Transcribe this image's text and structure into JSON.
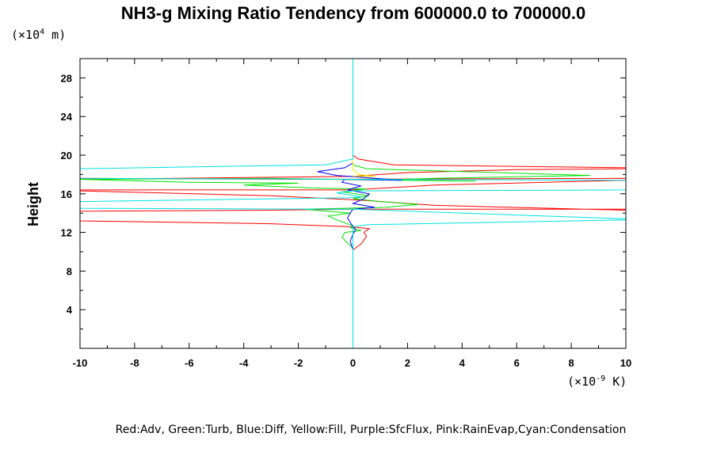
{
  "chart_data": {
    "type": "line",
    "title": "NH3-g Mixing Ratio Tendency from 600000.0 to 700000.0",
    "ylabel": "Height",
    "xlabel": "",
    "y_unit_prefix": "(×10",
    "y_unit_exp": "4",
    "y_unit_suffix": " m)",
    "x_unit_prefix": "(×10",
    "x_unit_exp": "-9",
    "x_unit_suffix": " K)",
    "xlim": [
      -10,
      10
    ],
    "ylim": [
      0,
      30
    ],
    "x_ticks": [
      -10,
      -8,
      -6,
      -4,
      -2,
      0,
      2,
      4,
      6,
      8,
      10
    ],
    "y_ticks": [
      4,
      8,
      12,
      16,
      20,
      24,
      28
    ],
    "legend": "Red:Adv, Green:Turb, Blue:Diff, Yellow:Fill, Purple:SfcFlux, Pink:RainEvap,Cyan:Condensation",
    "series": [
      {
        "name": "Adv",
        "color": "#ff0000",
        "points": [
          [
            0,
            0
          ],
          [
            0,
            9.6
          ],
          [
            0,
            10.2
          ],
          [
            0.3,
            10.8
          ],
          [
            0.5,
            11.6
          ],
          [
            0.4,
            12.0
          ],
          [
            0.6,
            12.4
          ],
          [
            -0.2,
            12.6
          ],
          [
            -3,
            12.9
          ],
          [
            -10,
            13.2
          ],
          [
            -10,
            14.2
          ],
          [
            -3,
            14.3
          ],
          [
            0,
            14.4
          ],
          [
            10,
            14.4
          ],
          [
            10,
            14.3
          ],
          [
            3,
            14.8
          ],
          [
            0.5,
            15.3
          ],
          [
            -3,
            15.8
          ],
          [
            -10,
            16.3
          ],
          [
            -10,
            16.4
          ],
          [
            0,
            16.4
          ],
          [
            3,
            16.9
          ],
          [
            10,
            17.4
          ],
          [
            10,
            17.6
          ],
          [
            -2,
            17.5
          ],
          [
            -10,
            17.6
          ],
          [
            -10,
            17.5
          ],
          [
            0,
            17.8
          ],
          [
            2,
            18.2
          ],
          [
            6,
            18.5
          ],
          [
            10,
            18.6
          ],
          [
            10,
            18.7
          ],
          [
            1.5,
            19.0
          ],
          [
            0.2,
            19.6
          ],
          [
            0,
            20.0
          ],
          [
            0,
            30
          ]
        ]
      },
      {
        "name": "Turb",
        "color": "#00e000",
        "points": [
          [
            0,
            0
          ],
          [
            0,
            10.0
          ],
          [
            0,
            10.4
          ],
          [
            -0.2,
            10.9
          ],
          [
            -0.4,
            11.5
          ],
          [
            -0.3,
            12.0
          ],
          [
            0.3,
            12.2
          ],
          [
            -0.1,
            12.5
          ],
          [
            0,
            12.7
          ],
          [
            -0.6,
            13.3
          ],
          [
            -0.9,
            13.7
          ],
          [
            -0.1,
            14.0
          ],
          [
            -1.8,
            14.4
          ],
          [
            1.2,
            14.6
          ],
          [
            2.4,
            14.9
          ],
          [
            1,
            15.2
          ],
          [
            0,
            15.5
          ],
          [
            0.6,
            15.8
          ],
          [
            -0.4,
            16.2
          ],
          [
            0.5,
            16.5
          ],
          [
            -1.5,
            16.6
          ],
          [
            -4,
            16.9
          ],
          [
            -2,
            17.1
          ],
          [
            -6,
            17.2
          ],
          [
            -10,
            17.5
          ],
          [
            -3,
            17.6
          ],
          [
            4.5,
            17.3
          ],
          [
            -1,
            17.5
          ],
          [
            1.8,
            17.5
          ],
          [
            3,
            17.6
          ],
          [
            8.7,
            17.9
          ],
          [
            4,
            18.3
          ],
          [
            0.5,
            18.6
          ],
          [
            0,
            19.0
          ],
          [
            0,
            30
          ]
        ]
      },
      {
        "name": "Diff",
        "color": "#0000ff",
        "points": [
          [
            0,
            0
          ],
          [
            0,
            9.5
          ],
          [
            0,
            10.2
          ],
          [
            -0.1,
            11.1
          ],
          [
            0,
            11.8
          ],
          [
            0.1,
            12.3
          ],
          [
            0,
            12.6
          ],
          [
            -0.2,
            13.5
          ],
          [
            -0.1,
            14.0
          ],
          [
            0,
            14.4
          ],
          [
            0.8,
            14.6
          ],
          [
            0,
            15.0
          ],
          [
            0.4,
            15.5
          ],
          [
            0.6,
            16.0
          ],
          [
            -0.2,
            16.4
          ],
          [
            0.3,
            16.8
          ],
          [
            -0.4,
            17.2
          ],
          [
            -0.3,
            17.5
          ],
          [
            1.8,
            17.4
          ],
          [
            -0.6,
            17.9
          ],
          [
            -1.3,
            18.3
          ],
          [
            -0.3,
            18.7
          ],
          [
            0,
            19.2
          ],
          [
            0,
            30
          ]
        ]
      },
      {
        "name": "Fill",
        "color": "#f0f000",
        "points": [
          [
            0,
            17.8
          ],
          [
            0.8,
            17.8
          ],
          [
            0.2,
            18.0
          ],
          [
            0,
            18.5
          ],
          [
            0,
            19.6
          ]
        ]
      },
      {
        "name": "SfcFlux",
        "color": "#a000c0",
        "points": [
          [
            0,
            0
          ],
          [
            0,
            1.0
          ]
        ]
      },
      {
        "name": "RainEvap",
        "color": "#ff80c0",
        "points": [
          [
            0,
            0
          ],
          [
            0,
            1.2
          ]
        ]
      },
      {
        "name": "Condensation",
        "color": "#00e0e0",
        "points": [
          [
            0,
            0
          ],
          [
            0,
            12.6
          ],
          [
            0.6,
            12.8
          ],
          [
            10,
            13.3
          ],
          [
            10,
            13.4
          ],
          [
            0,
            14.4
          ],
          [
            -10,
            14.5
          ],
          [
            -10,
            15.2
          ],
          [
            0,
            15.6
          ],
          [
            0.3,
            15.7
          ],
          [
            -0.6,
            16.1
          ],
          [
            0,
            16.3
          ],
          [
            10,
            16.4
          ],
          [
            10,
            17.4
          ],
          [
            0,
            17.5
          ],
          [
            -10,
            17.6
          ],
          [
            -10,
            18.6
          ],
          [
            -1,
            19.0
          ],
          [
            0,
            19.6
          ],
          [
            0,
            30
          ]
        ]
      }
    ]
  }
}
